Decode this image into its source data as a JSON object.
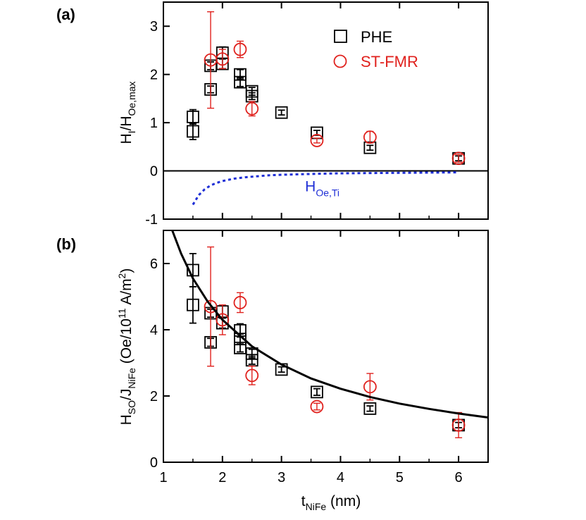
{
  "chart_data": [
    {
      "panel": "(a)",
      "type": "scatter",
      "ylabel": {
        "main": "H",
        "sub1": "I",
        "slash": "/H",
        "sub2": "Oe,max"
      },
      "xlim": [
        1,
        6.5
      ],
      "ylim": [
        -1,
        3.5
      ],
      "yticks": [
        -1,
        0,
        1,
        2,
        3
      ],
      "xticks": [
        1,
        2,
        3,
        4,
        5,
        6
      ],
      "zero_line": true,
      "colors": {
        "PHE": "#000000",
        "ST-FMR": "#e0211d",
        "HOe": "#1f2fd6"
      },
      "legend": {
        "position": "top-right",
        "entries": [
          "PHE",
          "ST-FMR"
        ]
      },
      "series": [
        {
          "name": "PHE",
          "marker": "square",
          "color": "#000000",
          "points": [
            {
              "x": 1.5,
              "y": 1.12,
              "err": 0.15
            },
            {
              "x": 1.5,
              "y": 0.82,
              "err": 0.17
            },
            {
              "x": 1.8,
              "y": 2.18,
              "err": 0.08
            },
            {
              "x": 1.8,
              "y": 1.69,
              "err": 0.07
            },
            {
              "x": 2.0,
              "y": 2.45,
              "err": 0.12
            },
            {
              "x": 2.0,
              "y": 2.22,
              "err": 0.1
            },
            {
              "x": 2.3,
              "y": 2.0,
              "err": 0.1
            },
            {
              "x": 2.3,
              "y": 1.84,
              "err": 0.09
            },
            {
              "x": 2.5,
              "y": 1.65,
              "err": 0.08
            },
            {
              "x": 2.5,
              "y": 1.55,
              "err": 0.07
            },
            {
              "x": 3.0,
              "y": 1.21,
              "err": 0.05
            },
            {
              "x": 3.6,
              "y": 0.79,
              "err": 0.05
            },
            {
              "x": 4.5,
              "y": 0.48,
              "err": 0.05
            },
            {
              "x": 6.0,
              "y": 0.26,
              "err": 0.05
            }
          ]
        },
        {
          "name": "ST-FMR",
          "marker": "circle",
          "color": "#e0211d",
          "points": [
            {
              "x": 1.8,
              "y": 2.3,
              "err": 1.0
            },
            {
              "x": 2.0,
              "y": 2.32,
              "err": 0.2
            },
            {
              "x": 2.3,
              "y": 2.52,
              "err": 0.17
            },
            {
              "x": 2.5,
              "y": 1.29,
              "err": 0.15
            },
            {
              "x": 3.6,
              "y": 0.63,
              "err": 0.05
            },
            {
              "x": 4.5,
              "y": 0.7,
              "err": 0.12
            },
            {
              "x": 6.0,
              "y": 0.26,
              "err": 0.08
            }
          ]
        },
        {
          "name": "HOe,Ti",
          "line": "dotted",
          "color": "#1f2fd6",
          "x": [
            1.5,
            1.6,
            1.7,
            1.8,
            1.9,
            2.0,
            2.2,
            2.4,
            2.6,
            2.8,
            3.0,
            3.3,
            3.6,
            4.0,
            4.5,
            5.0,
            5.5,
            6.0
          ],
          "y": [
            -0.7,
            -0.5,
            -0.38,
            -0.3,
            -0.25,
            -0.21,
            -0.16,
            -0.13,
            -0.11,
            -0.09,
            -0.08,
            -0.07,
            -0.06,
            -0.05,
            -0.045,
            -0.04,
            -0.035,
            -0.03
          ]
        }
      ],
      "annotation": {
        "main": "H",
        "sub": "Oe,Ti",
        "x": 3.4,
        "y": -0.42
      }
    },
    {
      "panel": "(b)",
      "type": "scatter",
      "ylabel": {
        "p1": "H",
        "s1": "SO",
        "p2": "/J",
        "s2": "NiFe",
        "p3": " (Oe/10",
        "sup1": "11",
        "p4": " A/m",
        "sup2": "2",
        "p5": ")"
      },
      "xlabel": {
        "main": "t",
        "sub": "NiFe",
        "rest": " (nm)"
      },
      "xlim": [
        1,
        6.5
      ],
      "ylim": [
        0,
        7
      ],
      "yticks": [
        0,
        2,
        4,
        6
      ],
      "xticks": [
        1,
        2,
        3,
        4,
        5,
        6
      ],
      "colors": {
        "PHE": "#000000",
        "ST-FMR": "#e0211d",
        "fit": "#000000"
      },
      "series": [
        {
          "name": "PHE",
          "marker": "square",
          "color": "#000000",
          "points": [
            {
              "x": 1.5,
              "y": 5.8,
              "err": 0.5
            },
            {
              "x": 1.5,
              "y": 4.75,
              "err": 0.55
            },
            {
              "x": 1.8,
              "y": 4.5,
              "err": 0.12
            },
            {
              "x": 1.8,
              "y": 3.62,
              "err": 0.12
            },
            {
              "x": 2.0,
              "y": 4.55,
              "err": 0.18
            },
            {
              "x": 2.0,
              "y": 4.2,
              "err": 0.15
            },
            {
              "x": 2.3,
              "y": 3.98,
              "err": 0.2
            },
            {
              "x": 2.3,
              "y": 3.72,
              "err": 0.15
            },
            {
              "x": 2.3,
              "y": 3.45,
              "err": 0.12
            },
            {
              "x": 2.5,
              "y": 3.28,
              "err": 0.13
            },
            {
              "x": 2.5,
              "y": 3.08,
              "err": 0.12
            },
            {
              "x": 3.0,
              "y": 2.8,
              "err": 0.08
            },
            {
              "x": 3.6,
              "y": 2.12,
              "err": 0.1
            },
            {
              "x": 4.5,
              "y": 1.62,
              "err": 0.08
            },
            {
              "x": 6.0,
              "y": 1.12,
              "err": 0.08
            }
          ]
        },
        {
          "name": "ST-FMR",
          "marker": "circle",
          "color": "#e0211d",
          "points": [
            {
              "x": 1.8,
              "y": 4.7,
              "err": 1.8
            },
            {
              "x": 2.0,
              "y": 4.3,
              "err": 0.45
            },
            {
              "x": 2.3,
              "y": 4.82,
              "err": 0.3
            },
            {
              "x": 2.5,
              "y": 2.62,
              "err": 0.28
            },
            {
              "x": 3.6,
              "y": 1.68,
              "err": 0.1
            },
            {
              "x": 4.5,
              "y": 2.28,
              "err": 0.4
            },
            {
              "x": 6.0,
              "y": 1.12,
              "err": 0.38
            }
          ]
        },
        {
          "name": "fit",
          "line": "solid",
          "color": "#000000",
          "x": [
            1.15,
            1.3,
            1.5,
            1.75,
            2.0,
            2.5,
            3.0,
            3.5,
            4.0,
            4.5,
            5.0,
            5.5,
            6.0,
            6.5
          ],
          "y": [
            7.0,
            6.3,
            5.55,
            4.85,
            4.3,
            3.5,
            2.95,
            2.53,
            2.22,
            1.97,
            1.77,
            1.61,
            1.47,
            1.35
          ]
        }
      ]
    }
  ]
}
